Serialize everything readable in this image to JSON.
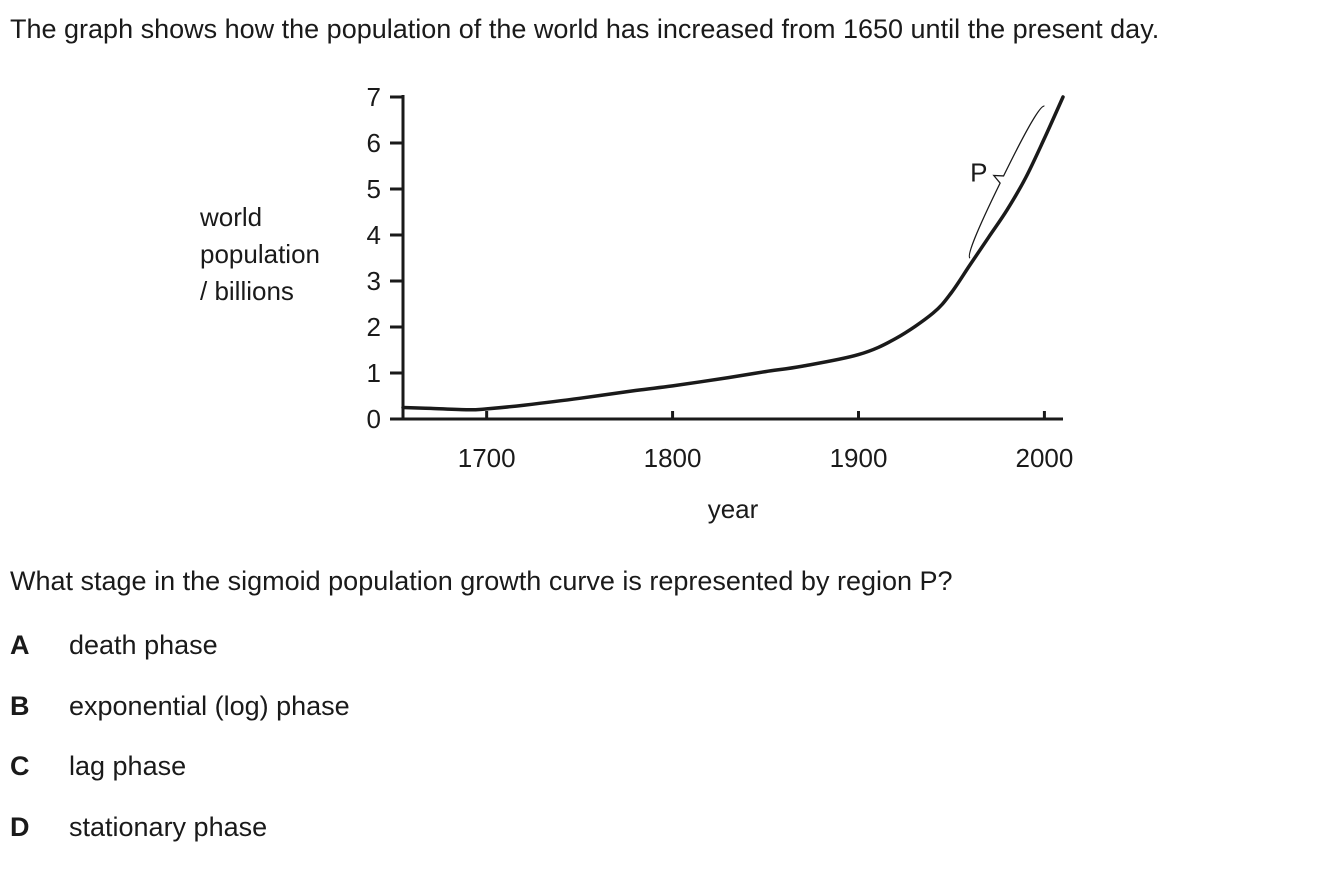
{
  "intro_text": "The graph shows how the population of the world has increased from 1650 until the present day.",
  "chart_data": {
    "type": "line",
    "ylabel_lines": [
      "world",
      "population",
      "/ billions"
    ],
    "xlabel": "year",
    "xlim": [
      1655,
      2010
    ],
    "ylim": [
      0,
      7
    ],
    "x_ticks": [
      1700,
      1800,
      1900,
      2000
    ],
    "y_ticks": [
      0,
      1,
      2,
      3,
      4,
      5,
      6,
      7
    ],
    "grid": false,
    "series": [
      {
        "x": [
          1655,
          1670,
          1690,
          1700,
          1720,
          1750,
          1780,
          1800,
          1830,
          1850,
          1870,
          1900,
          1920,
          1940,
          1950,
          1960,
          1970,
          1980,
          1990,
          2000,
          2010
        ],
        "y": [
          0.25,
          0.23,
          0.2,
          0.22,
          0.3,
          0.45,
          0.62,
          0.72,
          0.9,
          1.03,
          1.15,
          1.4,
          1.75,
          2.3,
          2.75,
          3.35,
          3.95,
          4.55,
          5.25,
          6.1,
          7.0
        ]
      }
    ],
    "annotation": {
      "label": "P",
      "x_range": [
        1960,
        2000
      ],
      "y_range": [
        3.5,
        6.8
      ]
    }
  },
  "question_text": "What stage in the sigmoid population growth curve is represented by region P?",
  "options": [
    {
      "letter": "A",
      "text": "death phase"
    },
    {
      "letter": "B",
      "text": "exponential (log) phase"
    },
    {
      "letter": "C",
      "text": "lag phase"
    },
    {
      "letter": "D",
      "text": "stationary phase"
    }
  ]
}
